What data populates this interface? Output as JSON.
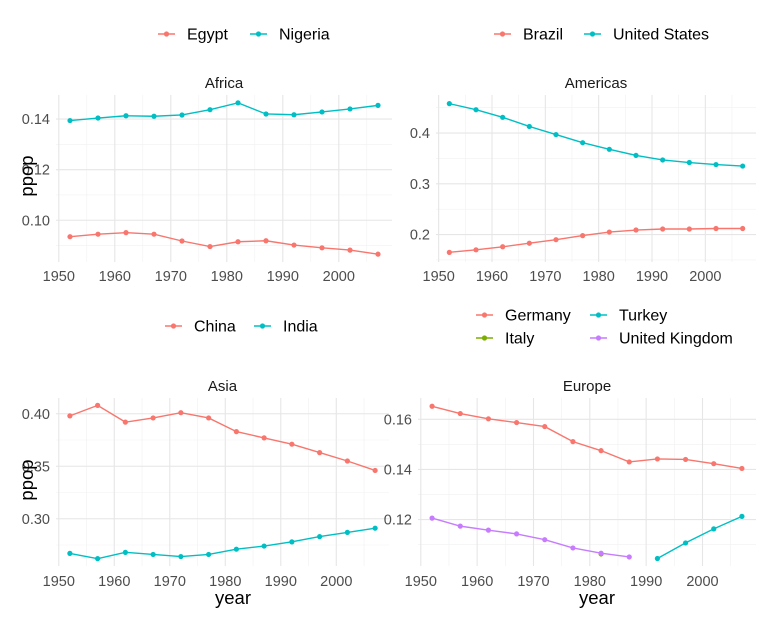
{
  "chart_data": [
    {
      "type": "line",
      "title": "Africa",
      "xlabel": "",
      "ylabel": "ppop",
      "xlim": [
        1949.5,
        2009.5
      ],
      "ylim": [
        0.0835,
        0.1495
      ],
      "xticks": [
        1950,
        1960,
        1970,
        1980,
        1990,
        2000
      ],
      "yticks": [
        0.1,
        0.12,
        0.14
      ],
      "ytick_labels": [
        "0.10",
        "0.12",
        "0.14"
      ],
      "grid": true,
      "legend_position": "top",
      "x": [
        1952,
        1957,
        1962,
        1967,
        1972,
        1977,
        1982,
        1987,
        1992,
        1997,
        2002,
        2007
      ],
      "series": [
        {
          "name": "Egypt",
          "color": "#F8766D",
          "values": [
            0.0935,
            0.0945,
            0.0951,
            0.0945,
            0.0918,
            0.0896,
            0.0915,
            0.0919,
            0.0902,
            0.0891,
            0.0882,
            0.0866
          ]
        },
        {
          "name": "Nigeria",
          "color": "#00BFC4",
          "values": [
            0.1394,
            0.1404,
            0.1413,
            0.1411,
            0.1416,
            0.1437,
            0.1464,
            0.142,
            0.1417,
            0.1428,
            0.144,
            0.1454
          ]
        }
      ]
    },
    {
      "type": "line",
      "title": "Americas",
      "xlabel": "",
      "ylabel": "",
      "xlim": [
        1949.5,
        2009.5
      ],
      "ylim": [
        0.146,
        0.475
      ],
      "xticks": [
        1950,
        1960,
        1970,
        1980,
        1990,
        2000
      ],
      "yticks": [
        0.2,
        0.3,
        0.4
      ],
      "ytick_labels": [
        "0.2",
        "0.3",
        "0.4"
      ],
      "grid": true,
      "legend_position": "top",
      "x": [
        1952,
        1957,
        1962,
        1967,
        1972,
        1977,
        1982,
        1987,
        1992,
        1997,
        2002,
        2007
      ],
      "series": [
        {
          "name": "Brazil",
          "color": "#F8766D",
          "values": [
            0.165,
            0.17,
            0.176,
            0.183,
            0.19,
            0.198,
            0.205,
            0.209,
            0.211,
            0.211,
            0.212,
            0.212
          ]
        },
        {
          "name": "United States",
          "color": "#00BFC4",
          "values": [
            0.458,
            0.446,
            0.431,
            0.413,
            0.397,
            0.381,
            0.368,
            0.356,
            0.347,
            0.342,
            0.338,
            0.335
          ]
        }
      ]
    },
    {
      "type": "line",
      "title": "Asia",
      "xlabel": "year",
      "ylabel": "ppop",
      "xlim": [
        1949.5,
        2009.5
      ],
      "ylim": [
        0.255,
        0.415
      ],
      "xticks": [
        1950,
        1960,
        1970,
        1980,
        1990,
        2000
      ],
      "yticks": [
        0.3,
        0.35,
        0.4
      ],
      "ytick_labels": [
        "0.30",
        "0.35",
        "0.40"
      ],
      "grid": true,
      "legend_position": "top",
      "x": [
        1952,
        1957,
        1962,
        1967,
        1972,
        1977,
        1982,
        1987,
        1992,
        1997,
        2002,
        2007
      ],
      "series": [
        {
          "name": "China",
          "color": "#F8766D",
          "values": [
            0.398,
            0.408,
            0.392,
            0.396,
            0.401,
            0.396,
            0.383,
            0.377,
            0.371,
            0.363,
            0.355,
            0.346
          ]
        },
        {
          "name": "India",
          "color": "#00BFC4",
          "values": [
            0.267,
            0.262,
            0.268,
            0.266,
            0.264,
            0.266,
            0.271,
            0.274,
            0.278,
            0.283,
            0.287,
            0.291
          ]
        }
      ]
    },
    {
      "type": "line",
      "title": "Europe",
      "xlabel": "year",
      "ylabel": "",
      "xlim": [
        1949.5,
        2009.5
      ],
      "ylim": [
        0.1015,
        0.1685
      ],
      "xticks": [
        1950,
        1960,
        1970,
        1980,
        1990,
        2000
      ],
      "yticks": [
        0.12,
        0.14,
        0.16
      ],
      "ytick_labels": [
        "0.12",
        "0.14",
        "0.16"
      ],
      "grid": true,
      "legend_position": "top",
      "x": [
        1952,
        1957,
        1962,
        1967,
        1972,
        1977,
        1982,
        1987,
        1992,
        1997,
        2002,
        2007
      ],
      "series": [
        {
          "name": "Germany",
          "color": "#F8766D",
          "values": [
            0.1652,
            0.1623,
            0.1602,
            0.1587,
            0.1571,
            0.1511,
            0.1475,
            0.143,
            0.1442,
            0.144,
            0.1423,
            0.1404
          ]
        },
        {
          "name": "Italy",
          "color": "#7CAE00",
          "values": [
            null,
            null,
            null,
            null,
            null,
            null,
            0.1063,
            null,
            null,
            null,
            null,
            null
          ]
        },
        {
          "name": "Turkey",
          "color": "#00BFC4",
          "values": [
            null,
            null,
            null,
            null,
            null,
            null,
            null,
            null,
            0.1045,
            0.1107,
            0.1163,
            0.1213
          ]
        },
        {
          "name": "United Kingdom",
          "color": "#C77CFF",
          "values": [
            0.1206,
            0.1174,
            0.1158,
            0.1143,
            0.112,
            0.1087,
            0.1066,
            0.1051,
            null,
            null,
            null,
            null
          ]
        }
      ]
    }
  ]
}
